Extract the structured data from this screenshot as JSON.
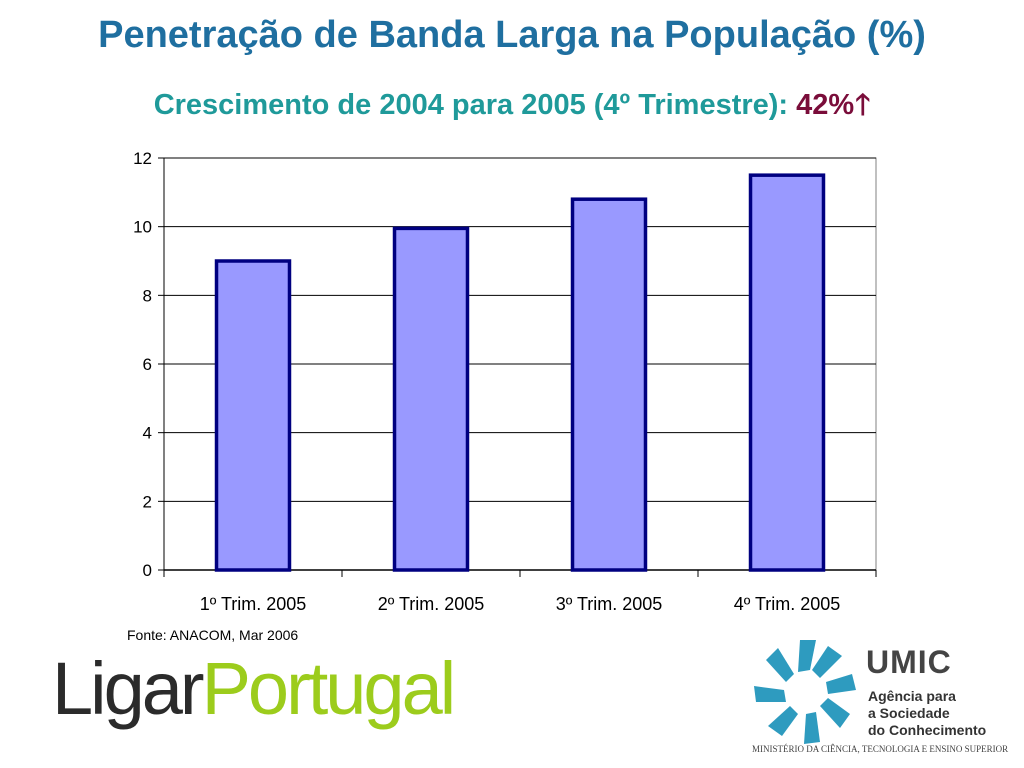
{
  "header": {
    "title": "Penetração de Banda Larga na População (%)",
    "subtitle_prefix": "Crescimento de 2004 para 2005 (4º Trimestre):",
    "subtitle_value": "42%",
    "subtitle_icon": "up-arrow-icon",
    "subtitle_arrow_glyph": "🡑"
  },
  "chart_data": {
    "type": "bar",
    "title": "",
    "xlabel": "",
    "ylabel": "",
    "categories": [
      "1º Trim. 2005",
      "2º Trim. 2005",
      "3º Trim. 2005",
      "4º Trim. 2005"
    ],
    "values": [
      9.0,
      9.95,
      10.8,
      11.5
    ],
    "ylim": [
      0,
      12
    ],
    "yticks": [
      0,
      2,
      4,
      6,
      8,
      10,
      12
    ],
    "grid": true,
    "legend": "none",
    "bar_fill": "#9999ff",
    "bar_stroke": "#000080"
  },
  "source": "Fonte: ANACOM, Mar 2006",
  "logos": {
    "ligar_text": "Ligar",
    "portugal_text": "Portugal",
    "ligar_color": "#2b2b2b",
    "portugal_color": "#9ccc1c",
    "umic_name": "UMIC",
    "umic_line1": "Agência para",
    "umic_line2": "a Sociedade",
    "umic_line3": "do Conhecimento",
    "umic_ministry": "MINISTÉRIO DA CIÊNCIA, TECNOLOGIA E ENSINO SUPERIOR",
    "umic_emblem_color": "#2e9bbf"
  }
}
